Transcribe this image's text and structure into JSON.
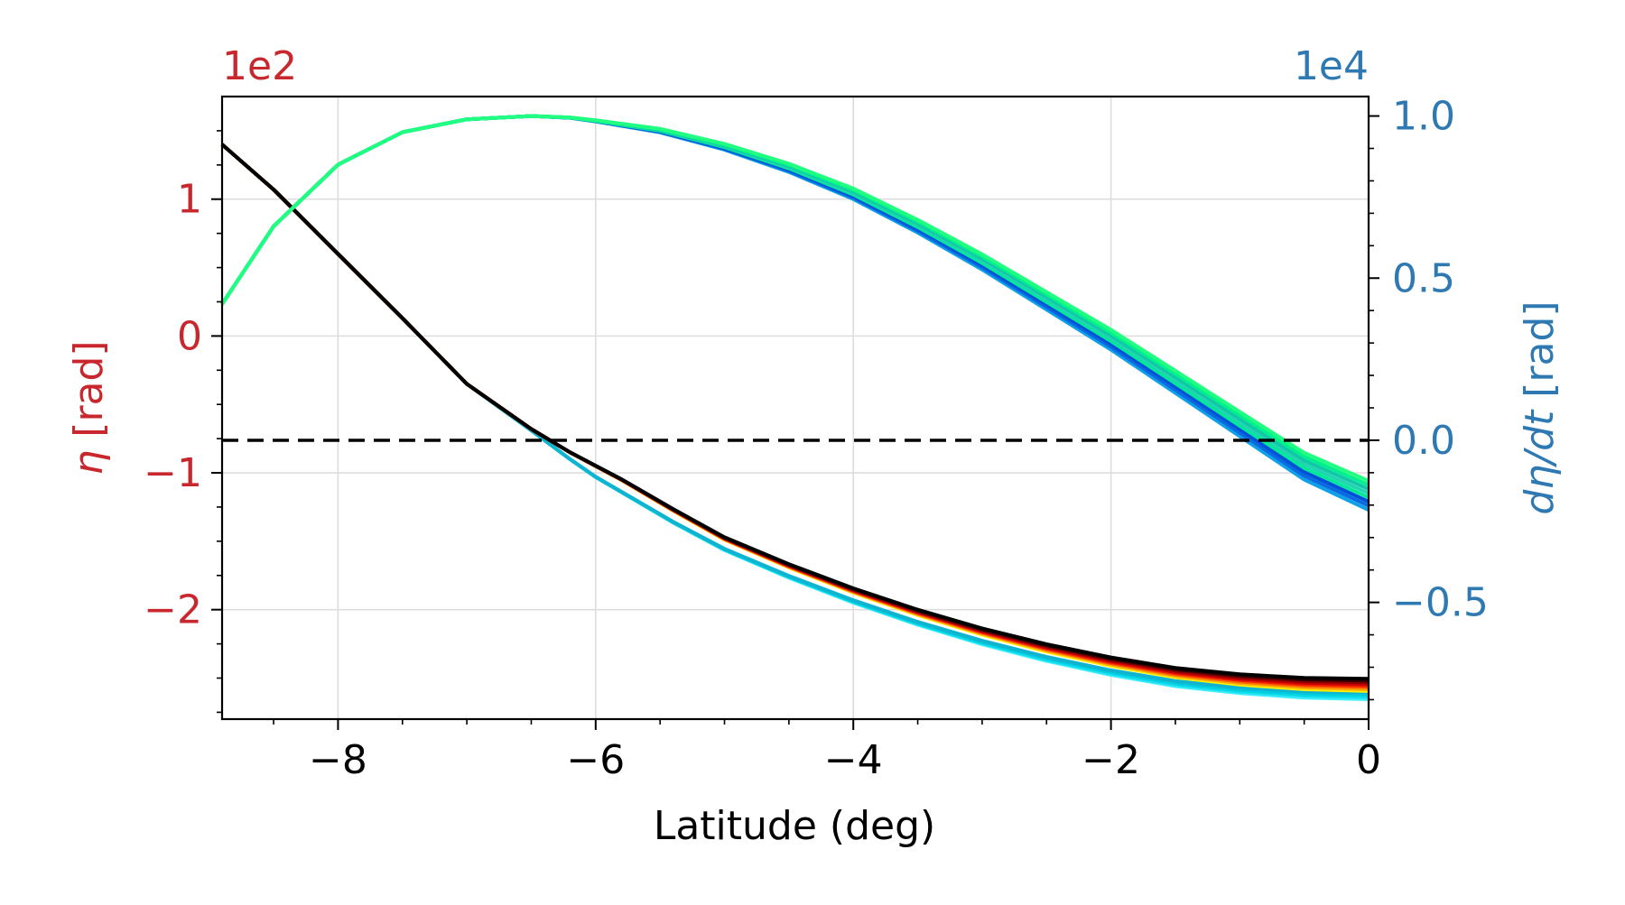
{
  "chart_data": {
    "type": "line",
    "xlabel": "Latitude (deg)",
    "xlim": [
      -8.9,
      0
    ],
    "xticks": [
      -8,
      -6,
      -4,
      -2,
      0
    ],
    "xtick_labels": [
      "−8",
      "−6",
      "−4",
      "−2",
      "0"
    ],
    "grid": true,
    "left_axis": {
      "label_symbol": "η",
      "label_unit": " [rad]",
      "multiplier": "1e2",
      "color": "#c8282d",
      "ylim": [
        -2.8,
        1.75
      ],
      "ticks": [
        -2,
        -1,
        0,
        1
      ],
      "tick_labels": [
        "−2",
        "−1",
        "0",
        "1"
      ]
    },
    "right_axis": {
      "label_symbol": "dη/dt",
      "label_unit": " [rad]",
      "multiplier": "1e4",
      "color": "#2f79b3",
      "ylim": [
        -0.86,
        1.06
      ],
      "ticks": [
        -0.5,
        0.0,
        0.5,
        1.0
      ],
      "tick_labels": [
        "−0.5",
        "0.0",
        "0.5",
        "1.0"
      ]
    },
    "reference_line": {
      "axis": "right",
      "y": 0.0,
      "style": "dashed",
      "color": "#000000"
    },
    "series": [
      {
        "axis": "left",
        "colormap": "hot (black-red-yellow ensemble)",
        "band": {
          "offset_from": -6.3,
          "spread": 0.09
        },
        "x": [
          -8.9,
          -8.5,
          -8.0,
          -7.5,
          -7.0,
          -6.5,
          -6.2,
          -6.0,
          -5.8,
          -5.6,
          -5.4,
          -5.0,
          -4.5,
          -4.0,
          -3.5,
          -3.0,
          -2.5,
          -2.0,
          -1.5,
          -1.0,
          -0.5,
          0.0
        ],
        "y": [
          1.4,
          1.07,
          0.6,
          0.13,
          -0.35,
          -0.68,
          -0.85,
          -0.95,
          -1.05,
          -1.16,
          -1.27,
          -1.48,
          -1.68,
          -1.86,
          -2.02,
          -2.16,
          -2.28,
          -2.38,
          -2.46,
          -2.51,
          -2.54,
          -2.55
        ]
      },
      {
        "axis": "left",
        "colormap": "cool (cyan ensemble)",
        "band": {
          "offset_from": -6.3,
          "spread": 0.05
        },
        "x": [
          -8.9,
          -8.5,
          -8.0,
          -7.5,
          -7.0,
          -6.5,
          -6.2,
          -6.0,
          -5.8,
          -5.6,
          -5.4,
          -5.0,
          -4.5,
          -4.0,
          -3.5,
          -3.0,
          -2.5,
          -2.0,
          -1.5,
          -1.0,
          -0.5,
          0.0
        ],
        "y": [
          1.4,
          1.07,
          0.6,
          0.13,
          -0.35,
          -0.69,
          -0.9,
          -1.03,
          -1.14,
          -1.25,
          -1.36,
          -1.56,
          -1.76,
          -1.94,
          -2.1,
          -2.24,
          -2.36,
          -2.46,
          -2.54,
          -2.59,
          -2.62,
          -2.63
        ]
      },
      {
        "axis": "right",
        "colormap": "winter (blue-green ensemble)",
        "band": {
          "offset_from": -6.3,
          "spread": 0.09
        },
        "x": [
          -8.9,
          -8.5,
          -8.0,
          -7.5,
          -7.0,
          -6.5,
          -6.2,
          -6.0,
          -5.5,
          -5.0,
          -4.5,
          -4.0,
          -3.5,
          -3.0,
          -2.5,
          -2.0,
          -1.5,
          -1.0,
          -0.5,
          0.0
        ],
        "y": [
          0.42,
          0.66,
          0.85,
          0.95,
          0.99,
          1.0,
          0.995,
          0.985,
          0.955,
          0.905,
          0.84,
          0.76,
          0.66,
          0.55,
          0.43,
          0.31,
          0.18,
          0.05,
          -0.08,
          -0.17
        ]
      }
    ]
  }
}
